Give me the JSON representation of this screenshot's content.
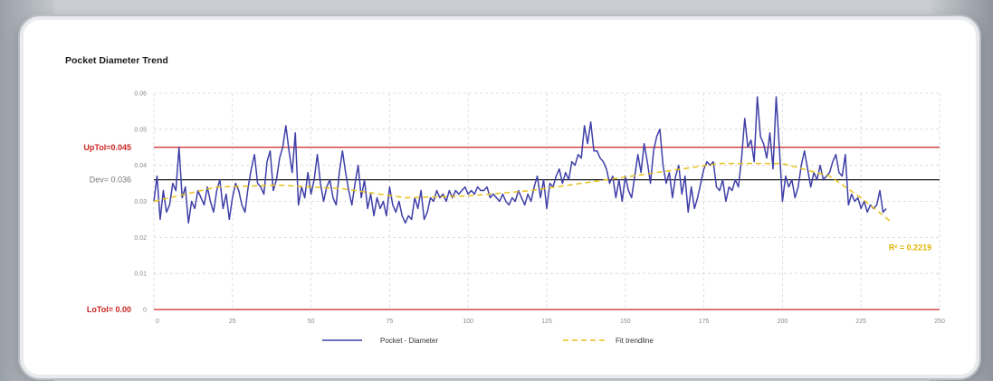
{
  "chart_data": {
    "type": "line",
    "title": "Pocket Diameter Trend",
    "xlim": [
      0,
      250
    ],
    "ylim": [
      0,
      0.06
    ],
    "x_ticks": [
      "0",
      "25",
      "50",
      "75",
      "100",
      "125",
      "150",
      "175",
      "200",
      "225",
      "250"
    ],
    "y_ticks": [
      "0",
      "0.01",
      "0.02",
      "0.03",
      "0.04",
      "0.05",
      "0.06"
    ],
    "grid": true,
    "legend_position": "bottom",
    "reference_lines": [
      {
        "label": "UpTol=0.045",
        "value": 0.045,
        "color": "#cc2222"
      },
      {
        "label": "Dev= 0.036",
        "value": 0.036,
        "color": "#1a1a1a"
      },
      {
        "label": "LoTol= 0.00",
        "value": 0.0,
        "color": "#cc2222"
      }
    ],
    "annotation": {
      "text": "R² = 0.2219",
      "x": 235,
      "y": 0.017
    },
    "series": [
      {
        "name": "Pocket - Diameter",
        "color": "#3f3fa8",
        "y": [
          0.03,
          0.037,
          0.025,
          0.033,
          0.027,
          0.029,
          0.035,
          0.033,
          0.045,
          0.031,
          0.034,
          0.024,
          0.03,
          0.028,
          0.033,
          0.031,
          0.029,
          0.034,
          0.03,
          0.027,
          0.033,
          0.036,
          0.028,
          0.032,
          0.025,
          0.031,
          0.035,
          0.033,
          0.029,
          0.027,
          0.034,
          0.039,
          0.043,
          0.035,
          0.034,
          0.032,
          0.041,
          0.044,
          0.033,
          0.036,
          0.042,
          0.045,
          0.051,
          0.044,
          0.038,
          0.049,
          0.029,
          0.034,
          0.031,
          0.038,
          0.032,
          0.036,
          0.043,
          0.035,
          0.03,
          0.034,
          0.036,
          0.031,
          0.029,
          0.038,
          0.044,
          0.038,
          0.033,
          0.029,
          0.035,
          0.04,
          0.031,
          0.036,
          0.028,
          0.032,
          0.026,
          0.031,
          0.028,
          0.03,
          0.026,
          0.034,
          0.029,
          0.027,
          0.03,
          0.026,
          0.024,
          0.026,
          0.025,
          0.031,
          0.028,
          0.033,
          0.025,
          0.027,
          0.031,
          0.03,
          0.033,
          0.031,
          0.032,
          0.03,
          0.033,
          0.031,
          0.033,
          0.032,
          0.033,
          0.034,
          0.032,
          0.033,
          0.032,
          0.034,
          0.033,
          0.033,
          0.034,
          0.031,
          0.032,
          0.031,
          0.03,
          0.032,
          0.03,
          0.029,
          0.031,
          0.03,
          0.033,
          0.031,
          0.029,
          0.032,
          0.03,
          0.034,
          0.037,
          0.031,
          0.036,
          0.028,
          0.035,
          0.034,
          0.037,
          0.039,
          0.035,
          0.038,
          0.036,
          0.041,
          0.04,
          0.043,
          0.042,
          0.051,
          0.046,
          0.052,
          0.044,
          0.044,
          0.042,
          0.041,
          0.039,
          0.035,
          0.037,
          0.031,
          0.036,
          0.03,
          0.037,
          0.033,
          0.031,
          0.037,
          0.043,
          0.038,
          0.046,
          0.041,
          0.035,
          0.044,
          0.048,
          0.05,
          0.04,
          0.035,
          0.038,
          0.031,
          0.037,
          0.04,
          0.032,
          0.037,
          0.027,
          0.034,
          0.028,
          0.031,
          0.035,
          0.039,
          0.041,
          0.04,
          0.041,
          0.034,
          0.033,
          0.036,
          0.03,
          0.034,
          0.033,
          0.036,
          0.034,
          0.042,
          0.053,
          0.045,
          0.047,
          0.041,
          0.059,
          0.048,
          0.046,
          0.042,
          0.049,
          0.039,
          0.059,
          0.045,
          0.03,
          0.037,
          0.034,
          0.036,
          0.031,
          0.034,
          0.04,
          0.044,
          0.039,
          0.034,
          0.038,
          0.036,
          0.04,
          0.036,
          0.037,
          0.038,
          0.041,
          0.043,
          0.038,
          0.037,
          0.043,
          0.029,
          0.032,
          0.03,
          0.031,
          0.028,
          0.03,
          0.027,
          0.029,
          0.028,
          0.029,
          0.033,
          0.027,
          0.028
        ]
      },
      {
        "name": "Fit trendline",
        "color": "#e6c21a",
        "x": [
          0,
          20,
          40,
          60,
          80,
          100,
          120,
          140,
          160,
          180,
          200,
          215,
          225,
          235
        ],
        "y": [
          0.03,
          0.034,
          0.0345,
          0.0335,
          0.031,
          0.0315,
          0.033,
          0.0355,
          0.038,
          0.0405,
          0.0405,
          0.037,
          0.031,
          0.024
        ]
      }
    ]
  }
}
